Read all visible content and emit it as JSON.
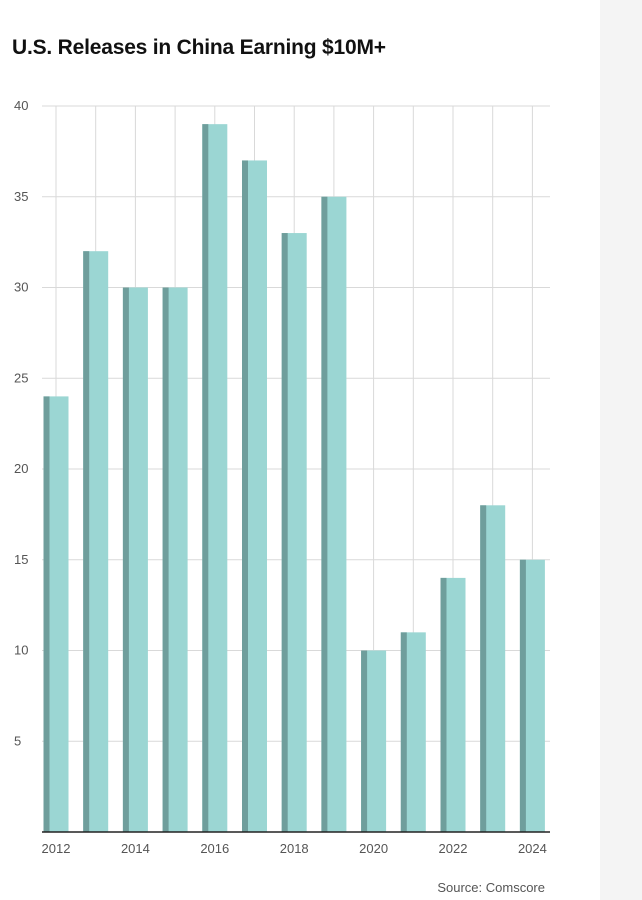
{
  "colors": {
    "bar_face": "#9bd6d3",
    "bar_side": "#6f9e9c",
    "grid": "#d9d9d9",
    "axis": "#222222",
    "tick_text": "#555555"
  },
  "chart_data": {
    "type": "bar",
    "title": "U.S. Releases in China Earning $10M+",
    "xlabel": "",
    "ylabel": "",
    "categories": [
      "2012",
      "2013",
      "2014",
      "2015",
      "2016",
      "2017",
      "2018",
      "2019",
      "2020",
      "2021",
      "2022",
      "2023",
      "2024"
    ],
    "values": [
      24,
      32,
      30,
      30,
      39,
      37,
      33,
      35,
      10,
      11,
      14,
      18,
      15
    ],
    "x_tick_labels": [
      "2012",
      "2014",
      "2016",
      "2018",
      "2020",
      "2022",
      "2024"
    ],
    "y_ticks": [
      5,
      10,
      15,
      20,
      25,
      30,
      35,
      40
    ],
    "ylim": [
      0,
      40
    ],
    "grid": true,
    "legend": "none",
    "source": "Source: Comscore"
  }
}
